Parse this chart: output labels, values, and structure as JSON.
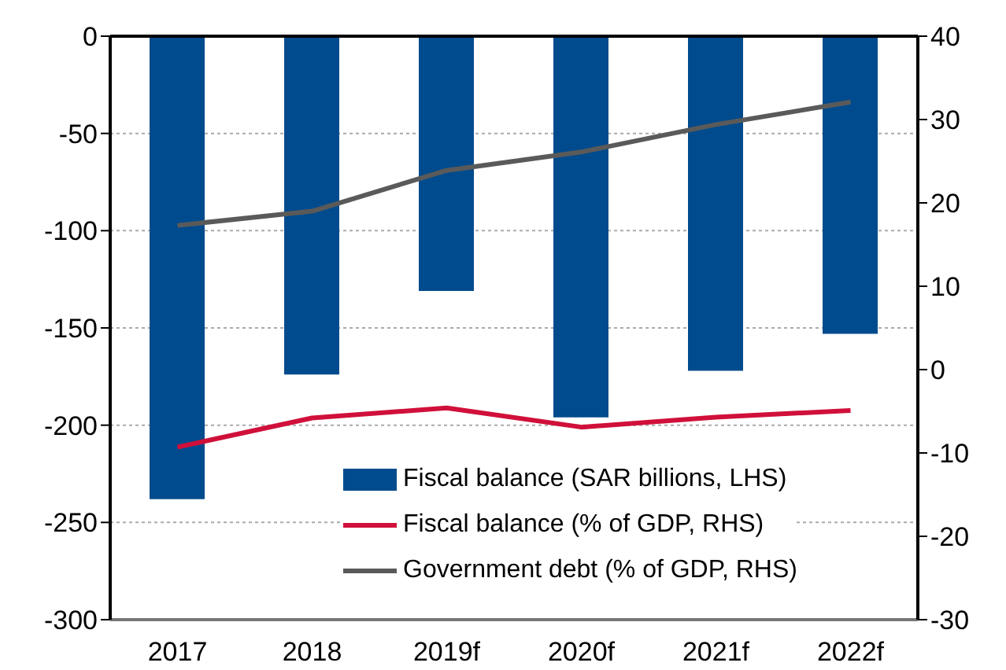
{
  "chart_data": {
    "type": "bar",
    "categories": [
      "2017",
      "2018",
      "2019f",
      "2020f",
      "2021f",
      "2022f"
    ],
    "series": [
      {
        "name": "Fiscal balance (SAR billions, LHS)",
        "color": "#004b8d",
        "values": [
          -238,
          -174,
          -131,
          -196,
          -172,
          -153
        ]
      },
      {
        "name": "Fiscal balance (% of GDP, RHS)",
        "type": "line",
        "axis": "y2",
        "color": "#d0103a",
        "values": [
          -9.3,
          -5.8,
          -4.6,
          -6.9,
          -5.7,
          -4.9
        ]
      },
      {
        "name": "Government debt (% of GDP, RHS)",
        "type": "line",
        "axis": "y2",
        "color": "#5a5a5a",
        "values": [
          17.3,
          19.0,
          23.9,
          26.1,
          29.4,
          32.1
        ]
      }
    ],
    "ylim": [
      -300,
      0
    ],
    "yticks": [
      -300,
      -250,
      -200,
      -150,
      -100,
      -50,
      0
    ],
    "y2lim": [
      -30,
      40
    ],
    "y2ticks": [
      -30,
      -20,
      -10,
      0,
      10,
      20,
      30,
      40
    ],
    "grid": "y",
    "legend": "bottom right",
    "marker": "none",
    "line_style": "solid"
  }
}
